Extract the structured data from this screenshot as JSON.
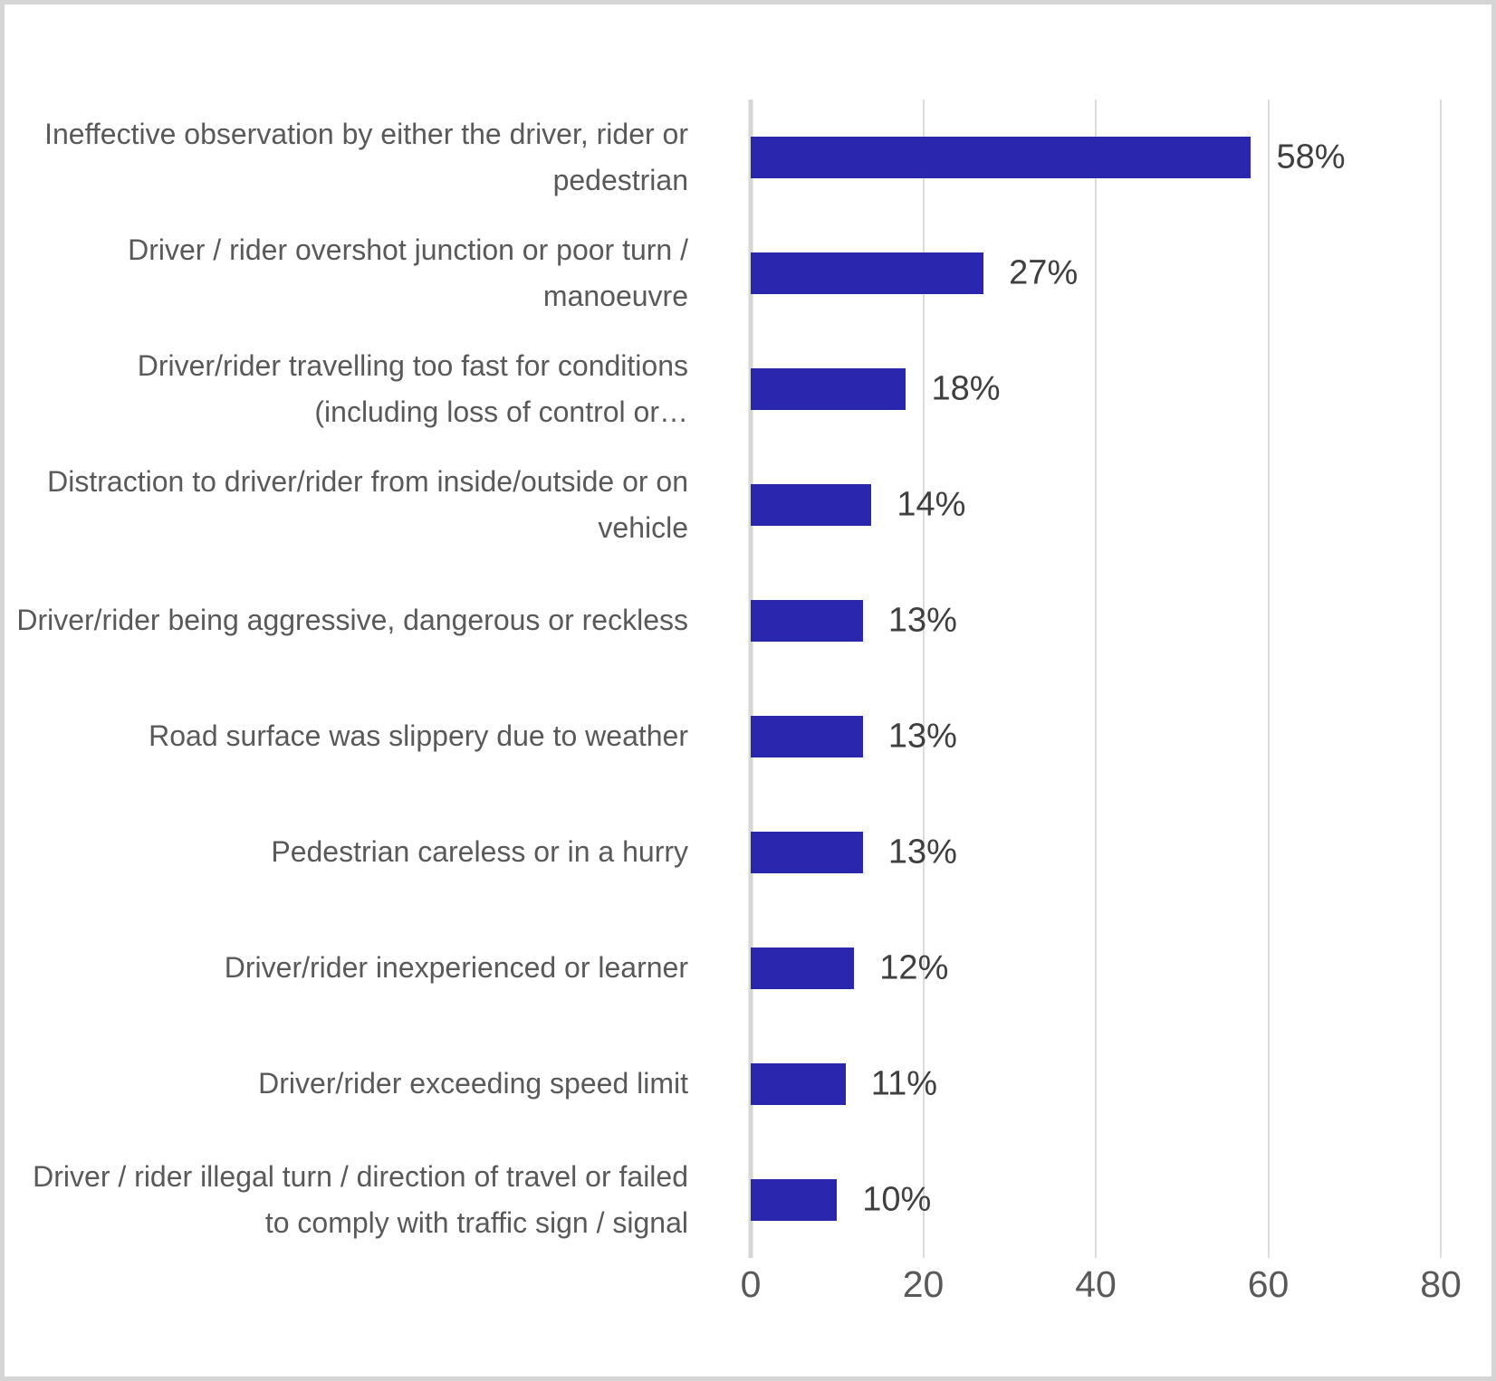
{
  "chart_data": {
    "type": "bar",
    "orientation": "horizontal",
    "title": "",
    "xlabel": "",
    "ylabel": "",
    "xlim": [
      0,
      80
    ],
    "x_ticks": [
      0,
      20,
      40,
      60,
      80
    ],
    "grid": true,
    "legend": false,
    "categories": [
      "Ineffective observation by either the driver, rider or pedestrian",
      "Driver / rider overshot junction or poor turn / manoeuvre",
      "Driver/rider travelling too fast for conditions (including loss of control or…",
      "Distraction to driver/rider from inside/outside or on vehicle",
      "Driver/rider being aggressive, dangerous or reckless",
      "Road surface was slippery due to weather",
      "Pedestrian careless or in a hurry",
      "Driver/rider inexperienced or learner",
      "Driver/rider exceeding speed limit",
      "Driver / rider illegal turn / direction of travel or failed to comply with traffic sign / signal"
    ],
    "values": [
      58,
      27,
      18,
      14,
      13,
      13,
      13,
      12,
      11,
      10
    ],
    "data_labels": [
      "58%",
      "27%",
      "18%",
      "14%",
      "13%",
      "13%",
      "13%",
      "12%",
      "11%",
      "10%"
    ]
  },
  "colors": {
    "bar": "#2a27ae",
    "category_text": "#595959",
    "value_text": "#3f3f3f",
    "tick_text": "#595959",
    "gridline": "#dcdcdc",
    "axis_line": "#d6d6d6",
    "frame_border": "#d5d5d5",
    "background": "#ffffff"
  }
}
